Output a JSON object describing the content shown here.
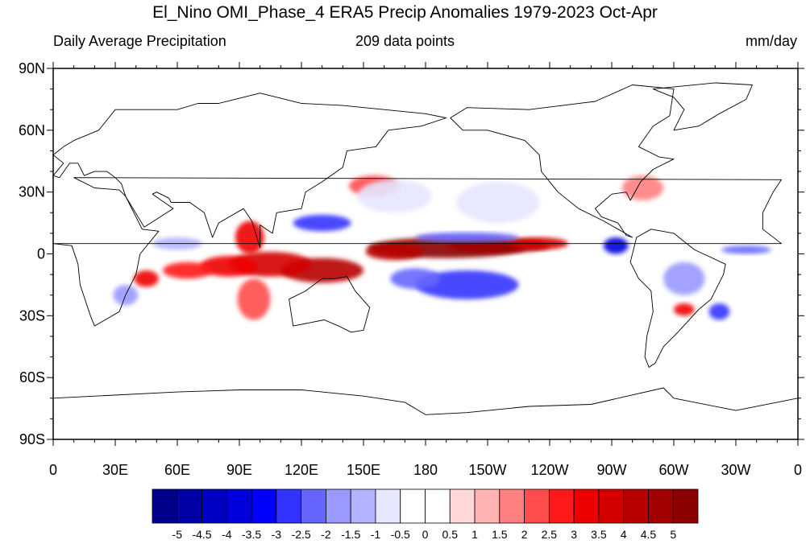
{
  "title": "El_Nino OMI_Phase_4 ERA5 Precip Anomalies 1979-2023 Oct-Apr",
  "left_subtitle": "Daily Average Precipitation",
  "center_subtitle": "209 data points",
  "right_subtitle": "mm/day",
  "lat_labels": [
    "90N",
    "60N",
    "30N",
    "0",
    "30S",
    "60S",
    "90S"
  ],
  "lat_values": [
    90,
    60,
    30,
    0,
    -30,
    -60,
    -90
  ],
  "lon_labels": [
    "0",
    "30E",
    "60E",
    "90E",
    "120E",
    "150E",
    "180",
    "150W",
    "120W",
    "90W",
    "60W",
    "30W",
    "0"
  ],
  "lon_values": [
    0,
    30,
    60,
    90,
    120,
    150,
    180,
    210,
    240,
    270,
    300,
    330,
    360
  ],
  "colorbar": {
    "labels": [
      "-5",
      "-4.5",
      "-4",
      "-3.5",
      "-3",
      "-2.5",
      "-2",
      "-1.5",
      "-1",
      "-0.5",
      "0",
      "0.5",
      "1",
      "1.5",
      "2",
      "2.5",
      "3",
      "3.5",
      "4",
      "4.5",
      "5"
    ],
    "colors": [
      "#00008b",
      "#0000a6",
      "#0000c2",
      "#0000dd",
      "#0000ff",
      "#3333ff",
      "#6666ff",
      "#9999ff",
      "#b3b3ff",
      "#e6e6ff",
      "#ffffff",
      "#ffffff",
      "#ffd9d9",
      "#ffb3b3",
      "#ff8080",
      "#ff4d4d",
      "#ff1a1a",
      "#ee0000",
      "#d40000",
      "#b80000",
      "#a00000",
      "#8b0000"
    ]
  },
  "anomalies": [
    {
      "lon": 190,
      "lat": 3,
      "rx": 38,
      "ry": 5,
      "value": 5
    },
    {
      "lon": 215,
      "lat": 4,
      "rx": 25,
      "ry": 3.5,
      "value": 4.5
    },
    {
      "lon": 165,
      "lat": 1,
      "rx": 14,
      "ry": 4,
      "value": 4
    },
    {
      "lon": 235,
      "lat": 5,
      "rx": 14,
      "ry": 3,
      "value": 3.5
    },
    {
      "lon": 130,
      "lat": -8,
      "rx": 20,
      "ry": 6,
      "value": 4
    },
    {
      "lon": 105,
      "lat": -5,
      "rx": 20,
      "ry": 6,
      "value": 3.5
    },
    {
      "lon": 85,
      "lat": -6,
      "rx": 14,
      "ry": 5,
      "value": 3
    },
    {
      "lon": 65,
      "lat": -8,
      "rx": 12,
      "ry": 4,
      "value": 2.5
    },
    {
      "lon": 95,
      "lat": 8,
      "rx": 7,
      "ry": 8,
      "value": 3
    },
    {
      "lon": 45,
      "lat": -12,
      "rx": 6,
      "ry": 4,
      "value": 3
    },
    {
      "lon": 97,
      "lat": -22,
      "rx": 8,
      "ry": 10,
      "value": 2
    },
    {
      "lon": 155,
      "lat": 33,
      "rx": 12,
      "ry": 5,
      "value": 2
    },
    {
      "lon": 305,
      "lat": -27,
      "rx": 5,
      "ry": 3,
      "value": 3
    },
    {
      "lon": 285,
      "lat": 32,
      "rx": 10,
      "ry": 6,
      "value": 1.5
    },
    {
      "lon": 272,
      "lat": 4,
      "rx": 6,
      "ry": 4,
      "value": -4
    },
    {
      "lon": 200,
      "lat": -15,
      "rx": 25,
      "ry": 7,
      "value": -3
    },
    {
      "lon": 175,
      "lat": -12,
      "rx": 12,
      "ry": 5,
      "value": -2.5
    },
    {
      "lon": 130,
      "lat": 15,
      "rx": 14,
      "ry": 4,
      "value": -3
    },
    {
      "lon": 200,
      "lat": 8,
      "rx": 25,
      "ry": 2.5,
      "value": -2.5
    },
    {
      "lon": 322,
      "lat": -28,
      "rx": 5,
      "ry": 4,
      "value": -3
    },
    {
      "lon": 305,
      "lat": -12,
      "rx": 10,
      "ry": 8,
      "value": -2
    },
    {
      "lon": 335,
      "lat": 2,
      "rx": 12,
      "ry": 2,
      "value": -2.5
    },
    {
      "lon": 60,
      "lat": 5,
      "rx": 12,
      "ry": 3,
      "value": -1.5
    },
    {
      "lon": 35,
      "lat": -20,
      "rx": 6,
      "ry": 5,
      "value": -2
    },
    {
      "lon": 165,
      "lat": 28,
      "rx": 18,
      "ry": 8,
      "value": -1
    },
    {
      "lon": 215,
      "lat": 25,
      "rx": 20,
      "ry": 10,
      "value": -1
    },
    {
      "lon": 155,
      "lat": 55,
      "rx": 30,
      "ry": 6,
      "value": -0.5
    }
  ],
  "landmasses": [
    {
      "name": "north-america",
      "points": [
        [
          192,
          66
        ],
        [
          200,
          71
        ],
        [
          230,
          70
        ],
        [
          262,
          74
        ],
        [
          280,
          82
        ],
        [
          300,
          80
        ],
        [
          298,
          67
        ],
        [
          290,
          62
        ],
        [
          283,
          52
        ],
        [
          293,
          47
        ],
        [
          300,
          46
        ],
        [
          290,
          41
        ],
        [
          284,
          35
        ],
        [
          279,
          26
        ],
        [
          277,
          30
        ],
        [
          270,
          29
        ],
        [
          262,
          22
        ],
        [
          265,
          18
        ],
        [
          273,
          15
        ],
        [
          277,
          9
        ],
        [
          280,
          8
        ],
        [
          266,
          16
        ],
        [
          254,
          22
        ],
        [
          244,
          30
        ],
        [
          236,
          40
        ],
        [
          235,
          48
        ],
        [
          228,
          55
        ],
        [
          210,
          60
        ],
        [
          198,
          60
        ],
        [
          192,
          66
        ]
      ]
    },
    {
      "name": "greenland",
      "points": [
        [
          300,
          60
        ],
        [
          312,
          62
        ],
        [
          322,
          68
        ],
        [
          335,
          75
        ],
        [
          338,
          82
        ],
        [
          320,
          83
        ],
        [
          290,
          80
        ],
        [
          300,
          76
        ],
        [
          305,
          70
        ],
        [
          300,
          60
        ]
      ]
    },
    {
      "name": "south-america",
      "points": [
        [
          282,
          8
        ],
        [
          289,
          12
        ],
        [
          300,
          10
        ],
        [
          310,
          2
        ],
        [
          325,
          -5
        ],
        [
          324,
          -10
        ],
        [
          318,
          -22
        ],
        [
          312,
          -27
        ],
        [
          302,
          -38
        ],
        [
          295,
          -45
        ],
        [
          291,
          -53
        ],
        [
          288,
          -55
        ],
        [
          286,
          -50
        ],
        [
          287,
          -40
        ],
        [
          290,
          -28
        ],
        [
          289,
          -18
        ],
        [
          283,
          -12
        ],
        [
          279,
          -4
        ],
        [
          282,
          8
        ]
      ]
    },
    {
      "name": "africa",
      "points": [
        [
          352,
          36
        ],
        [
          10,
          37
        ],
        [
          20,
          32
        ],
        [
          32,
          31
        ],
        [
          35,
          28
        ],
        [
          43,
          12
        ],
        [
          51,
          11
        ],
        [
          42,
          0
        ],
        [
          40,
          -10
        ],
        [
          35,
          -20
        ],
        [
          32,
          -28
        ],
        [
          20,
          -35
        ],
        [
          18,
          -30
        ],
        [
          13,
          -15
        ],
        [
          12,
          -5
        ],
        [
          9,
          4
        ],
        [
          0,
          5
        ],
        [
          352,
          5
        ],
        [
          343,
          12
        ],
        [
          343,
          20
        ],
        [
          348,
          30
        ],
        [
          352,
          36
        ]
      ]
    },
    {
      "name": "eurasia",
      "points": [
        [
          0,
          38
        ],
        [
          5,
          44
        ],
        [
          0,
          48
        ],
        [
          5,
          52
        ],
        [
          10,
          55
        ],
        [
          22,
          60
        ],
        [
          30,
          70
        ],
        [
          60,
          70
        ],
        [
          70,
          73
        ],
        [
          80,
          73
        ],
        [
          100,
          78
        ],
        [
          120,
          73
        ],
        [
          140,
          72
        ],
        [
          160,
          70
        ],
        [
          180,
          68
        ],
        [
          190,
          66
        ],
        [
          178,
          62
        ],
        [
          162,
          60
        ],
        [
          156,
          52
        ],
        [
          142,
          50
        ],
        [
          140,
          42
        ],
        [
          130,
          35
        ],
        [
          122,
          30
        ],
        [
          120,
          22
        ],
        [
          108,
          20
        ],
        [
          106,
          10
        ],
        [
          100,
          14
        ],
        [
          100,
          3
        ],
        [
          96,
          16
        ],
        [
          92,
          22
        ],
        [
          80,
          15
        ],
        [
          77,
          8
        ],
        [
          73,
          20
        ],
        [
          66,
          25
        ],
        [
          57,
          25
        ],
        [
          56,
          27
        ],
        [
          50,
          30
        ],
        [
          48,
          29
        ],
        [
          58,
          22
        ],
        [
          44,
          13
        ],
        [
          35,
          28
        ],
        [
          33,
          34
        ],
        [
          30,
          37
        ],
        [
          26,
          40
        ],
        [
          20,
          40
        ],
        [
          15,
          38
        ],
        [
          12,
          44
        ],
        [
          8,
          44
        ],
        [
          3,
          37
        ],
        [
          0,
          38
        ]
      ]
    },
    {
      "name": "australia",
      "points": [
        [
          114,
          -22
        ],
        [
          122,
          -18
        ],
        [
          130,
          -12
        ],
        [
          136,
          -12
        ],
        [
          142,
          -11
        ],
        [
          146,
          -18
        ],
        [
          153,
          -26
        ],
        [
          150,
          -37
        ],
        [
          144,
          -38
        ],
        [
          138,
          -35
        ],
        [
          131,
          -32
        ],
        [
          116,
          -35
        ],
        [
          114,
          -22
        ]
      ]
    },
    {
      "name": "antarctica",
      "points": [
        [
          0,
          -70
        ],
        [
          60,
          -67
        ],
        [
          90,
          -66
        ],
        [
          120,
          -66
        ],
        [
          150,
          -69
        ],
        [
          170,
          -72
        ],
        [
          180,
          -78
        ],
        [
          200,
          -77
        ],
        [
          230,
          -74
        ],
        [
          260,
          -73
        ],
        [
          295,
          -65
        ],
        [
          300,
          -70
        ],
        [
          330,
          -76
        ],
        [
          360,
          -70
        ],
        [
          360,
          -90
        ],
        [
          0,
          -90
        ]
      ]
    }
  ]
}
